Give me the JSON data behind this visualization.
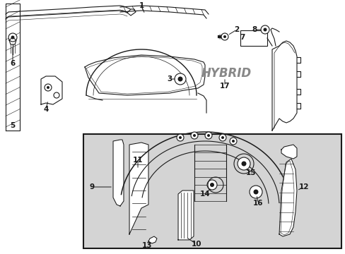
{
  "bg": "#ffffff",
  "lc": "#1a1a1a",
  "hybrid_color": "#888888",
  "box_bg": "#d4d4d4",
  "figsize": [
    4.89,
    3.6
  ],
  "dpi": 100
}
